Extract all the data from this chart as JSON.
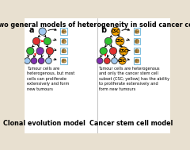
{
  "title": "Two general models of heterogeneity in solid cancer cells",
  "title_fontsize": 5.8,
  "bg_color": "#e8e0d0",
  "white_bg": "#ffffff",
  "panel_a_label": "a",
  "panel_b_label": "b",
  "footer_a": "Clonal evolution model",
  "footer_b": "Cancer stem cell model",
  "caption_a": "Tumour cells are\nheterogenous, but most\ncells can proliferate\nextensively and form\nnew tumours",
  "caption_b": "Tumour cells are heterogenous\nand only the cancer stem cell\nsubset (CSC; yellow) has the ability\nto proliferate extensively and\nform new tumours",
  "tumor_color": "#c8a050",
  "tumor_edge": "#705020",
  "colors": {
    "light_blue": "#a0c8f0",
    "red": "#e03030",
    "green": "#30c030",
    "purple": "#8030b0",
    "orange": "#f0a000"
  }
}
